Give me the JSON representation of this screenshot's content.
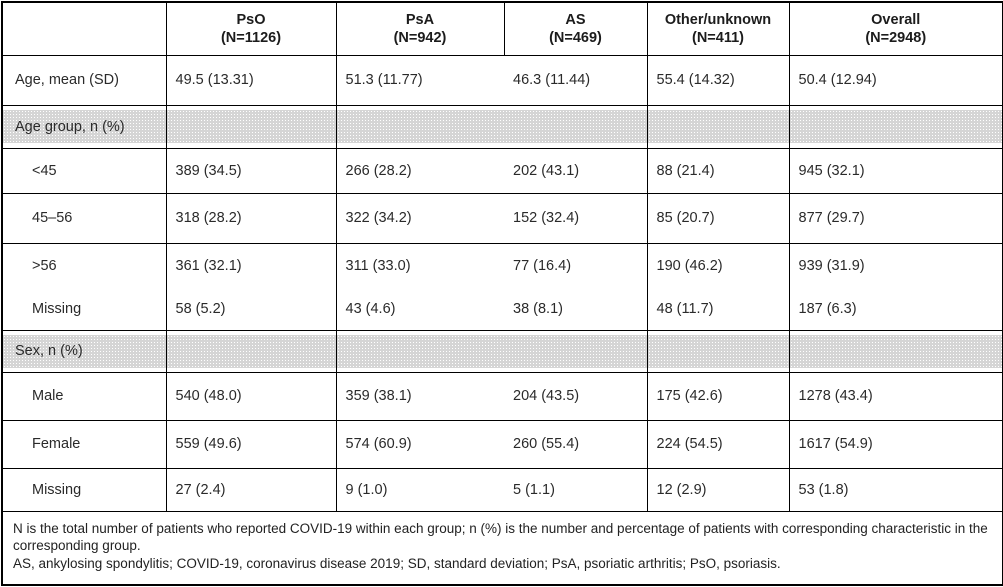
{
  "table": {
    "columns": [
      {
        "label": "PsO",
        "n": "(N=1126)"
      },
      {
        "label": "PsA",
        "n": "(N=942)"
      },
      {
        "label": "AS",
        "n": "(N=469)"
      },
      {
        "label": "Other/unknown",
        "n": "(N=411)"
      },
      {
        "label": "Overall",
        "n": "(N=2948)"
      }
    ],
    "rows": [
      {
        "type": "data",
        "label": "Age, mean (SD)",
        "indent": false,
        "values": [
          "49.5 (13.31)",
          "51.3 (11.77)",
          "46.3 (11.44)",
          "55.4 (14.32)",
          "50.4 (12.94)"
        ]
      },
      {
        "type": "section",
        "label": "Age group, n (%)"
      },
      {
        "type": "data",
        "label": "<45",
        "indent": true,
        "values": [
          "389 (34.5)",
          "266 (28.2)",
          "202 (43.1)",
          "88 (21.4)",
          "945 (32.1)"
        ]
      },
      {
        "type": "data",
        "label": "45–56",
        "indent": true,
        "values": [
          "318 (28.2)",
          "322 (34.2)",
          "152 (32.4)",
          "85 (20.7)",
          "877 (29.7)"
        ]
      },
      {
        "type": "data",
        "label": ">56",
        "indent": true,
        "values": [
          "361 (32.1)",
          "311 (33.0)",
          "77 (16.4)",
          "190 (46.2)",
          "939 (31.9)"
        ]
      },
      {
        "type": "data",
        "label": "Missing",
        "indent": true,
        "values": [
          "58 (5.2)",
          "43 (4.6)",
          "38 (8.1)",
          "48 (11.7)",
          "187 (6.3)"
        ]
      },
      {
        "type": "section",
        "label": "Sex, n (%)"
      },
      {
        "type": "data",
        "label": "Male",
        "indent": true,
        "values": [
          "540 (48.0)",
          "359 (38.1)",
          "204 (43.5)",
          "175 (42.6)",
          "1278 (43.4)"
        ]
      },
      {
        "type": "data",
        "label": "Female",
        "indent": true,
        "values": [
          "559 (49.6)",
          "574 (60.9)",
          "260 (55.4)",
          "224 (54.5)",
          "1617 (54.9)"
        ]
      },
      {
        "type": "data",
        "label": "Missing",
        "indent": true,
        "values": [
          "27 (2.4)",
          "9 (1.0)",
          "5 (1.1)",
          "12 (2.9)",
          "53 (1.8)"
        ]
      }
    ],
    "footnotes": [
      "N is the total number of patients who reported COVID-19 within each group; n (%) is the number and percentage of patients with corresponding characteristic in the corresponding group.",
      "AS, ankylosing spondylitis; COVID-19, coronavirus disease 2019; SD, standard deviation; PsA, psoriatic arthritis; PsO, psoriasis."
    ]
  },
  "colors": {
    "border": "#000000",
    "section_band": "#d5d5d5",
    "text": "#2a2a2a"
  }
}
